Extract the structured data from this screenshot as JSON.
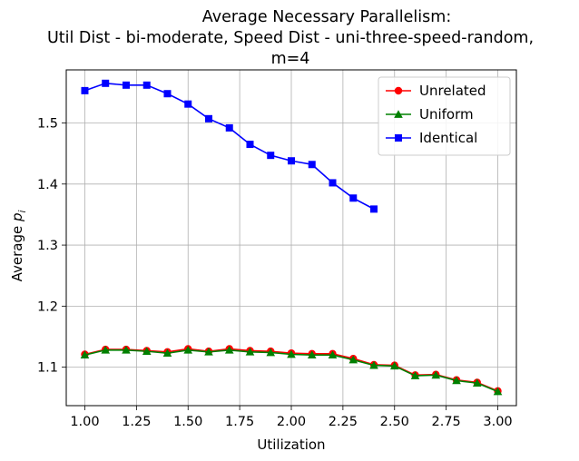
{
  "chart_data": {
    "type": "line",
    "title_lines": [
      "Average Necessary Parallelism:",
      "Util Dist - bi-moderate, Speed Dist - uni-three-speed-random,",
      "m=4"
    ],
    "xlabel": "Utilization",
    "ylabel": "Average ",
    "ylabel_symbol": "p",
    "ylabel_subscript": "i",
    "xlim": [
      0.91,
      3.09
    ],
    "ylim": [
      1.037,
      1.587
    ],
    "x_ticks": [
      1.0,
      1.25,
      1.5,
      1.75,
      2.0,
      2.25,
      2.5,
      2.75,
      3.0
    ],
    "x_tick_labels": [
      "1.00",
      "1.25",
      "1.50",
      "1.75",
      "2.00",
      "2.25",
      "2.50",
      "2.75",
      "3.00"
    ],
    "y_ticks": [
      1.1,
      1.2,
      1.3,
      1.4,
      1.5
    ],
    "y_tick_labels": [
      "1.1",
      "1.2",
      "1.3",
      "1.4",
      "1.5"
    ],
    "grid": true,
    "legend_position": "top-right",
    "series": [
      {
        "name": "Unrelated",
        "color": "#ff0000",
        "marker": "circle",
        "x": [
          1.0,
          1.1,
          1.2,
          1.3,
          1.4,
          1.5,
          1.6,
          1.7,
          1.8,
          1.9,
          2.0,
          2.1,
          2.2,
          2.3,
          2.4,
          2.5,
          2.6,
          2.7,
          2.8,
          2.9,
          3.0
        ],
        "y": [
          1.121,
          1.129,
          1.129,
          1.127,
          1.125,
          1.13,
          1.126,
          1.13,
          1.127,
          1.126,
          1.123,
          1.122,
          1.122,
          1.114,
          1.104,
          1.103,
          1.087,
          1.088,
          1.079,
          1.075,
          1.061
        ]
      },
      {
        "name": "Uniform",
        "color": "#008000",
        "marker": "triangle",
        "x": [
          1.0,
          1.1,
          1.2,
          1.3,
          1.4,
          1.5,
          1.6,
          1.7,
          1.8,
          1.9,
          2.0,
          2.1,
          2.2,
          2.3,
          2.4,
          2.5,
          2.6,
          2.7,
          2.8,
          2.9,
          3.0
        ],
        "y": [
          1.12,
          1.128,
          1.128,
          1.126,
          1.123,
          1.128,
          1.125,
          1.128,
          1.125,
          1.124,
          1.121,
          1.12,
          1.12,
          1.112,
          1.103,
          1.102,
          1.086,
          1.087,
          1.078,
          1.074,
          1.06
        ]
      },
      {
        "name": "Identical",
        "color": "#0000ff",
        "marker": "square",
        "x": [
          1.0,
          1.1,
          1.2,
          1.3,
          1.4,
          1.5,
          1.6,
          1.7,
          1.8,
          1.9,
          2.0,
          2.1,
          2.2,
          2.3,
          2.4
        ],
        "y": [
          1.553,
          1.565,
          1.562,
          1.562,
          1.548,
          1.531,
          1.507,
          1.492,
          1.465,
          1.447,
          1.438,
          1.432,
          1.402,
          1.377,
          1.359
        ]
      }
    ]
  }
}
